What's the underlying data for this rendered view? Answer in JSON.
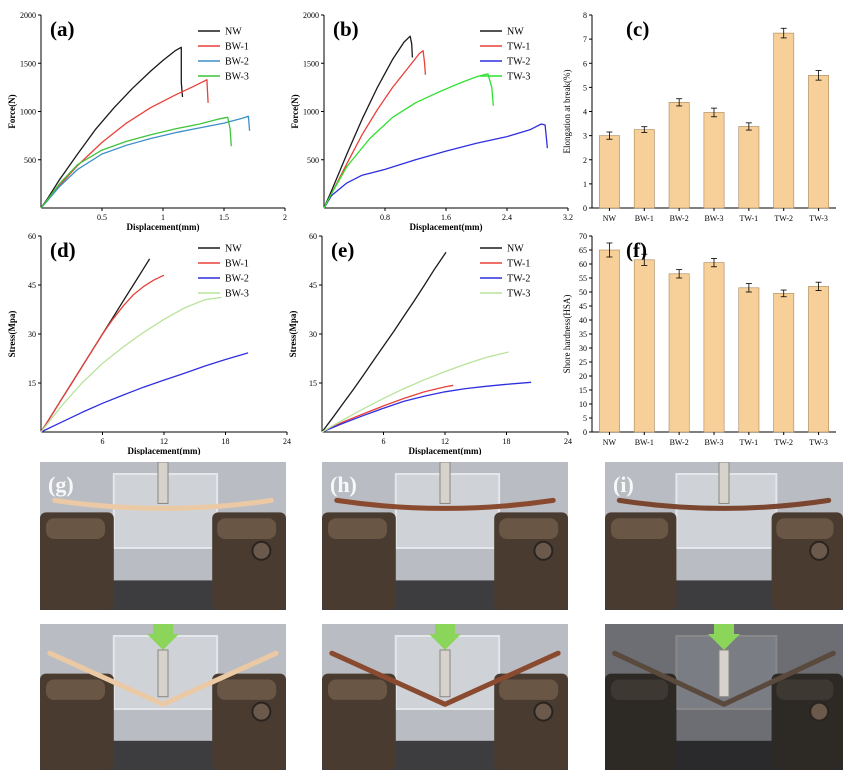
{
  "chart_data": [
    {
      "id": "a",
      "panel_label": "(a)",
      "type": "line",
      "xlabel": "Displacement(mm)",
      "ylabel": "Force(N)",
      "xlim": [
        0,
        2
      ],
      "ylim": [
        0,
        2000
      ],
      "xticks": [
        0.5,
        1,
        1.5,
        2
      ],
      "xtick_labels": [
        "0.5",
        "1",
        "1.5",
        "2"
      ],
      "yticks": [
        500,
        1000,
        1500,
        2000
      ],
      "ytick_labels": [
        "500",
        "1000",
        "1500",
        "2000"
      ],
      "legend_position": "top-right",
      "series": [
        {
          "name": "NW",
          "color": "#1a1a1a",
          "x": [
            0,
            0.05,
            0.15,
            0.3,
            0.45,
            0.6,
            0.75,
            0.9,
            1.0,
            1.1,
            1.15,
            1.15,
            1.16
          ],
          "y": [
            0,
            90,
            290,
            560,
            820,
            1040,
            1240,
            1420,
            1530,
            1630,
            1665,
            1300,
            1150
          ]
        },
        {
          "name": "BW-1",
          "color": "#e8403a",
          "x": [
            0,
            0.05,
            0.15,
            0.3,
            0.5,
            0.7,
            0.9,
            1.1,
            1.25,
            1.33,
            1.36,
            1.37
          ],
          "y": [
            0,
            80,
            230,
            440,
            680,
            880,
            1040,
            1170,
            1260,
            1310,
            1330,
            1090
          ]
        },
        {
          "name": "BW-2",
          "color": "#3d8fc7",
          "x": [
            0,
            0.05,
            0.15,
            0.3,
            0.5,
            0.7,
            0.9,
            1.1,
            1.3,
            1.5,
            1.65,
            1.7,
            1.71
          ],
          "y": [
            0,
            70,
            220,
            400,
            560,
            650,
            720,
            780,
            830,
            880,
            930,
            950,
            800
          ]
        },
        {
          "name": "BW-3",
          "color": "#3fc43b",
          "x": [
            0,
            0.05,
            0.15,
            0.3,
            0.5,
            0.7,
            0.9,
            1.1,
            1.3,
            1.45,
            1.53,
            1.55,
            1.56
          ],
          "y": [
            0,
            80,
            250,
            450,
            600,
            690,
            760,
            820,
            870,
            920,
            940,
            820,
            640
          ]
        }
      ]
    },
    {
      "id": "b",
      "panel_label": "(b)",
      "type": "line",
      "xlabel": "Displacement(mm)",
      "ylabel": "Force(N)",
      "xlim": [
        0,
        3.2
      ],
      "ylim": [
        0,
        2000
      ],
      "xticks": [
        0.8,
        1.6,
        2.4,
        3.2
      ],
      "xtick_labels": [
        "0.8",
        "1.6",
        "2.4",
        "3.2"
      ],
      "yticks": [
        500,
        1000,
        1500,
        2000
      ],
      "ytick_labels": [
        "500",
        "1000",
        "1500",
        "2000"
      ],
      "legend_position": "top-right",
      "series": [
        {
          "name": "NW",
          "color": "#1a1a1a",
          "x": [
            0,
            0.1,
            0.3,
            0.5,
            0.7,
            0.9,
            1.05,
            1.13,
            1.15,
            1.16
          ],
          "y": [
            0,
            180,
            560,
            920,
            1250,
            1540,
            1720,
            1780,
            1700,
            1560
          ]
        },
        {
          "name": "TW-1",
          "color": "#e8403a",
          "x": [
            0,
            0.1,
            0.3,
            0.5,
            0.7,
            0.9,
            1.1,
            1.25,
            1.3,
            1.32,
            1.33
          ],
          "y": [
            0,
            150,
            460,
            760,
            1020,
            1250,
            1450,
            1600,
            1630,
            1500,
            1380
          ]
        },
        {
          "name": "TW-2",
          "color": "#2f2fe0",
          "x": [
            0,
            0.1,
            0.3,
            0.5,
            0.8,
            1.2,
            1.6,
            2.0,
            2.4,
            2.7,
            2.85,
            2.9,
            2.93
          ],
          "y": [
            0,
            130,
            260,
            340,
            400,
            500,
            590,
            670,
            740,
            810,
            870,
            860,
            620
          ]
        },
        {
          "name": "TW-3",
          "color": "#2ee02e",
          "x": [
            0,
            0.1,
            0.3,
            0.6,
            0.9,
            1.2,
            1.5,
            1.8,
            2.0,
            2.15,
            2.2,
            2.22
          ],
          "y": [
            0,
            150,
            430,
            720,
            940,
            1090,
            1200,
            1300,
            1360,
            1390,
            1250,
            1060
          ]
        }
      ]
    },
    {
      "id": "c",
      "panel_label": "(c)",
      "type": "bar",
      "ylabel": "Elongation at break(%)",
      "ylim": [
        0,
        8
      ],
      "yticks": [
        0,
        1,
        2,
        3,
        4,
        5,
        6,
        7,
        8
      ],
      "ytick_labels": [
        "0",
        "1",
        "2",
        "3",
        "4",
        "5",
        "6",
        "7",
        "8"
      ],
      "categories": [
        "NW",
        "BW-1",
        "BW-2",
        "BW-3",
        "TW-1",
        "TW-2",
        "TW-3"
      ],
      "values": [
        3.0,
        3.25,
        4.38,
        3.96,
        3.38,
        7.25,
        5.5
      ],
      "errors": [
        0.15,
        0.12,
        0.15,
        0.18,
        0.15,
        0.2,
        0.2
      ],
      "color": "#f7cf98",
      "edge_color": "#a8875a"
    },
    {
      "id": "d",
      "panel_label": "(d)",
      "type": "line",
      "xlabel": "Displacement(mm)",
      "ylabel": "Stress(Mpa)",
      "xlim": [
        0,
        24
      ],
      "ylim": [
        0,
        60
      ],
      "xticks": [
        6,
        12,
        18,
        24
      ],
      "xtick_labels": [
        "6",
        "12",
        "18",
        "24"
      ],
      "yticks": [
        15,
        30,
        45,
        60
      ],
      "ytick_labels": [
        "15",
        "30",
        "45",
        "60"
      ],
      "legend_position": "top-right",
      "series": [
        {
          "name": "NW",
          "color": "#1a1a1a",
          "x": [
            0,
            1,
            2,
            3,
            4,
            5,
            6,
            7,
            8,
            9,
            10,
            10.6
          ],
          "y": [
            0,
            5,
            10,
            15,
            20,
            25,
            30,
            35,
            40,
            45,
            50,
            53
          ]
        },
        {
          "name": "BW-1",
          "color": "#e8403a",
          "x": [
            0,
            1,
            2,
            3,
            4,
            5,
            6,
            7,
            8,
            9,
            10,
            11,
            12
          ],
          "y": [
            0,
            5,
            10,
            15,
            20,
            25,
            30,
            34.5,
            38.5,
            42,
            44.5,
            46.5,
            48
          ]
        },
        {
          "name": "BW-2",
          "color": "#2f2fe0",
          "x": [
            0,
            2,
            4,
            6,
            8,
            10,
            12,
            14,
            16,
            18,
            20.2
          ],
          "y": [
            0,
            3,
            6,
            8.8,
            11.3,
            13.7,
            15.9,
            18,
            20.2,
            22.2,
            24.2
          ]
        },
        {
          "name": "BW-3",
          "color": "#b8e39a",
          "x": [
            0,
            1,
            2,
            4,
            6,
            8,
            10,
            12,
            14,
            16,
            17.6
          ],
          "y": [
            0,
            4,
            8,
            15,
            21,
            26,
            30.5,
            34.5,
            38,
            40.5,
            41.2
          ]
        }
      ]
    },
    {
      "id": "e",
      "panel_label": "(e)",
      "type": "line",
      "xlabel": "Displacement(mm)",
      "ylabel": "Stress(Mpa)",
      "xlim": [
        0,
        24
      ],
      "ylim": [
        0,
        60
      ],
      "xticks": [
        6,
        12,
        18,
        24
      ],
      "xtick_labels": [
        "6",
        "12",
        "18",
        "24"
      ],
      "yticks": [
        15,
        30,
        45,
        60
      ],
      "ytick_labels": [
        "15",
        "30",
        "45",
        "60"
      ],
      "legend_position": "top-right",
      "series": [
        {
          "name": "NW",
          "color": "#1a1a1a",
          "x": [
            0,
            1,
            2,
            3,
            4,
            5,
            6,
            7,
            8,
            9,
            10,
            11,
            12.1
          ],
          "y": [
            0,
            4.2,
            8.5,
            12.8,
            17.2,
            21.8,
            26.3,
            30.8,
            35.5,
            40.2,
            45,
            50,
            55
          ]
        },
        {
          "name": "TW-1",
          "color": "#e8403a",
          "x": [
            0,
            2,
            4,
            6,
            8,
            10,
            12,
            12.8
          ],
          "y": [
            0,
            3,
            5.5,
            8,
            10.3,
            12.3,
            13.8,
            14.3
          ]
        },
        {
          "name": "TW-2",
          "color": "#2f2fe0",
          "x": [
            0,
            2,
            4,
            6,
            8,
            10,
            12,
            14,
            16,
            18,
            20.4
          ],
          "y": [
            0,
            2.6,
            5,
            7.3,
            9.4,
            11,
            12.3,
            13.3,
            14,
            14.6,
            15.2
          ]
        },
        {
          "name": "TW-3",
          "color": "#b8e39a",
          "x": [
            0,
            2,
            4,
            6,
            8,
            10,
            12,
            14,
            16,
            18.2
          ],
          "y": [
            0,
            3.6,
            7,
            10.3,
            13.3,
            16,
            18.5,
            20.8,
            22.8,
            24.5
          ]
        }
      ]
    },
    {
      "id": "f",
      "panel_label": "(f)",
      "type": "bar",
      "ylabel": "Shore hardness(HSA)",
      "ylim": [
        0,
        70
      ],
      "yticks": [
        0,
        5,
        10,
        15,
        20,
        25,
        30,
        35,
        40,
        45,
        50,
        55,
        60,
        65,
        70
      ],
      "ytick_labels": [
        "0",
        "5",
        "10",
        "15",
        "20",
        "25",
        "30",
        "35",
        "40",
        "45",
        "50",
        "55",
        "60",
        "65",
        "70"
      ],
      "categories": [
        "NW",
        "BW-1",
        "BW-2",
        "BW-3",
        "TW-1",
        "TW-2",
        "TW-3"
      ],
      "values": [
        65,
        61.5,
        56.5,
        60.5,
        51.5,
        49.5,
        52
      ],
      "errors": [
        2.5,
        2,
        1.5,
        1.5,
        1.5,
        1.2,
        1.5
      ],
      "color": "#f7cf98",
      "edge_color": "#a8875a"
    }
  ],
  "photos": [
    {
      "id": "g",
      "panel_label": "(g)",
      "strip_color": "#eac9a4",
      "stage": "before"
    },
    {
      "id": "h",
      "panel_label": "(h)",
      "strip_color": "#8a4a30",
      "stage": "before"
    },
    {
      "id": "i",
      "panel_label": "(i)",
      "strip_color": "#7a4630",
      "stage": "before"
    },
    {
      "id": "g",
      "panel_label": "",
      "strip_color": "#eac9a4",
      "stage": "after"
    },
    {
      "id": "h",
      "panel_label": "",
      "strip_color": "#8a4a30",
      "stage": "after"
    },
    {
      "id": "i",
      "panel_label": "",
      "strip_color": "#5a4a3e",
      "stage": "after"
    }
  ]
}
